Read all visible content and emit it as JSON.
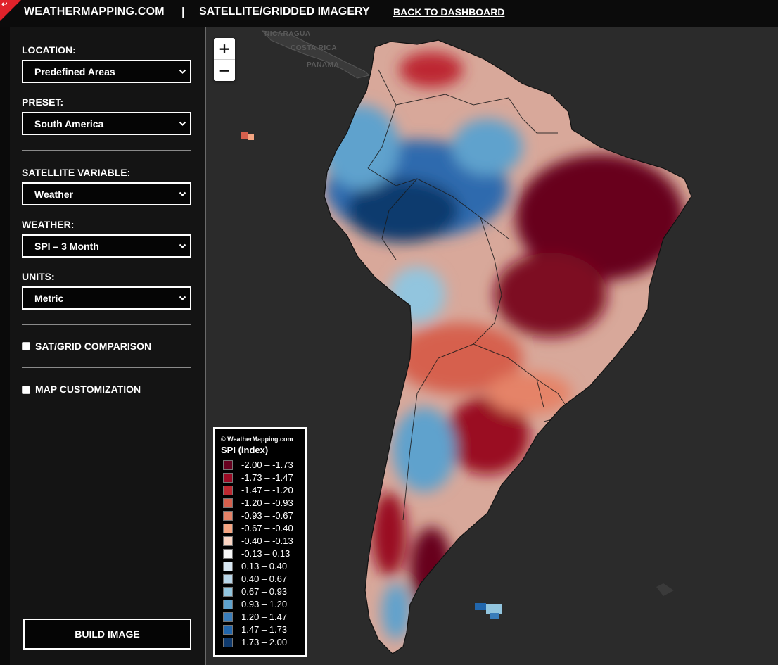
{
  "header": {
    "brand": "WEATHERMAPPING.COM",
    "separator": "|",
    "section": "SATELLITE/GRIDDED IMAGERY",
    "back_link": "BACK TO DASHBOARD"
  },
  "sidebar": {
    "location_label": "LOCATION:",
    "location_value": "Predefined Areas",
    "preset_label": "PRESET:",
    "preset_value": "South America",
    "variable_label": "SATELLITE VARIABLE:",
    "variable_value": "Weather",
    "weather_label": "WEATHER:",
    "weather_value": "SPI – 3 Month",
    "units_label": "UNITS:",
    "units_value": "Metric",
    "comparison_label": "SAT/GRID COMPARISON",
    "comparison_checked": false,
    "customization_label": "MAP CUSTOMIZATION",
    "customization_checked": false,
    "build_button": "BUILD IMAGE"
  },
  "map": {
    "zoom_in": "+",
    "zoom_out": "−",
    "labels": [
      "NICARAGUA",
      "COSTA RICA",
      "PANAMA"
    ]
  },
  "legend": {
    "copyright": "© WeatherMapping.com",
    "title": "SPI (index)",
    "items": [
      {
        "label": "-2.00 – -1.73",
        "color": "#67001f"
      },
      {
        "label": "-1.73 – -1.47",
        "color": "#9a0a24"
      },
      {
        "label": "-1.47 – -1.20",
        "color": "#bd2830"
      },
      {
        "label": "-1.20 – -0.93",
        "color": "#d6604d"
      },
      {
        "label": "-0.93 – -0.67",
        "color": "#e58368"
      },
      {
        "label": "-0.67 – -0.40",
        "color": "#f4a582"
      },
      {
        "label": "-0.40 – -0.13",
        "color": "#fbd5c4"
      },
      {
        "label": "-0.13 – 0.13",
        "color": "#f7f7f7"
      },
      {
        "label": "0.13 – 0.40",
        "color": "#d7e6f1"
      },
      {
        "label": "0.40 – 0.67",
        "color": "#b7d5e8"
      },
      {
        "label": "0.67 – 0.93",
        "color": "#92c5de"
      },
      {
        "label": "0.93 – 1.20",
        "color": "#5fa2cd"
      },
      {
        "label": "1.20 – 1.47",
        "color": "#3a7dba"
      },
      {
        "label": "1.47 – 1.73",
        "color": "#2166ac"
      },
      {
        "label": "1.73 – 2.00",
        "color": "#0f3a6e"
      }
    ]
  }
}
